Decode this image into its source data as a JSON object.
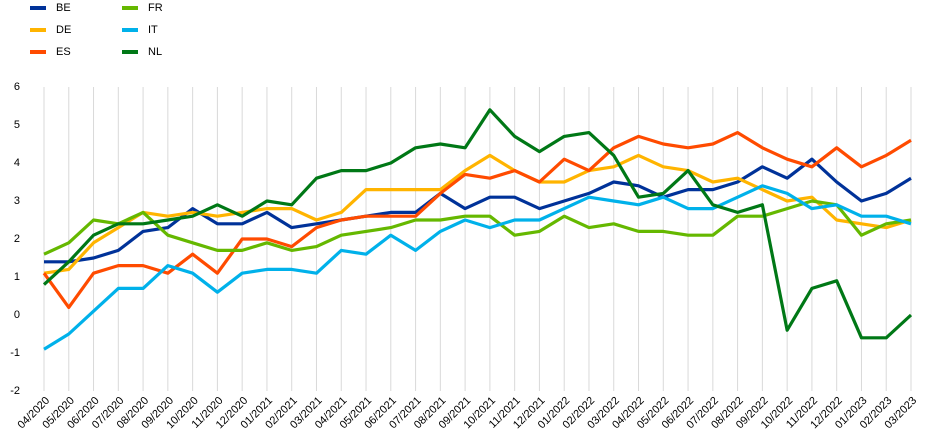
{
  "chart_data": {
    "type": "line",
    "categories": [
      "04/2020",
      "05/2020",
      "06/2020",
      "07/2020",
      "08/2020",
      "09/2020",
      "10/2020",
      "11/2020",
      "12/2020",
      "01/2021",
      "02/2021",
      "03/2021",
      "04/2021",
      "05/2021",
      "06/2021",
      "07/2021",
      "08/2021",
      "09/2021",
      "10/2021",
      "11/2021",
      "12/2021",
      "01/2022",
      "02/2022",
      "03/2022",
      "04/2022",
      "05/2022",
      "06/2022",
      "07/2022",
      "08/2022",
      "09/2022",
      "10/2022",
      "11/2022",
      "12/2022",
      "01/2023",
      "02/2023",
      "03/2023"
    ],
    "series": [
      {
        "name": "BE",
        "color": "#003299",
        "values": [
          1.4,
          1.4,
          1.5,
          1.7,
          2.2,
          2.3,
          2.8,
          2.4,
          2.4,
          2.7,
          2.3,
          2.4,
          2.5,
          2.6,
          2.7,
          2.7,
          3.2,
          2.8,
          3.1,
          3.1,
          2.8,
          3.0,
          3.2,
          3.5,
          3.4,
          3.1,
          3.3,
          3.3,
          3.5,
          3.9,
          3.6,
          4.1,
          3.5,
          3.0,
          3.2,
          3.6
        ]
      },
      {
        "name": "DE",
        "color": "#ffb400",
        "values": [
          1.1,
          1.2,
          1.9,
          2.3,
          2.7,
          2.6,
          2.7,
          2.6,
          2.7,
          2.8,
          2.8,
          2.5,
          2.7,
          3.3,
          3.3,
          3.3,
          3.3,
          3.8,
          4.2,
          3.8,
          3.5,
          3.5,
          3.8,
          3.9,
          4.2,
          3.9,
          3.8,
          3.5,
          3.6,
          3.3,
          3.0,
          3.1,
          2.5,
          2.4,
          2.3,
          2.5
        ]
      },
      {
        "name": "ES",
        "color": "#ff4b00",
        "values": [
          1.1,
          0.2,
          1.1,
          1.3,
          1.3,
          1.1,
          1.6,
          1.1,
          2.0,
          2.0,
          1.8,
          2.3,
          2.5,
          2.6,
          2.6,
          2.6,
          3.2,
          3.7,
          3.6,
          3.8,
          3.5,
          4.1,
          3.8,
          4.4,
          4.7,
          4.5,
          4.4,
          4.5,
          4.8,
          4.4,
          4.1,
          3.9,
          4.4,
          3.9,
          4.2,
          4.6
        ]
      },
      {
        "name": "FR",
        "color": "#65b800",
        "values": [
          1.6,
          1.9,
          2.5,
          2.4,
          2.7,
          2.1,
          1.9,
          1.7,
          1.7,
          1.9,
          1.7,
          1.8,
          2.1,
          2.2,
          2.3,
          2.5,
          2.5,
          2.6,
          2.6,
          2.1,
          2.2,
          2.6,
          2.3,
          2.4,
          2.2,
          2.2,
          2.1,
          2.1,
          2.6,
          2.6,
          2.8,
          3.0,
          2.9,
          2.1,
          2.4,
          2.5
        ]
      },
      {
        "name": "IT",
        "color": "#00b1ea",
        "values": [
          -0.9,
          -0.5,
          0.1,
          0.7,
          0.7,
          1.3,
          1.1,
          0.6,
          1.1,
          1.2,
          1.2,
          1.1,
          1.7,
          1.6,
          2.1,
          1.7,
          2.2,
          2.5,
          2.3,
          2.5,
          2.5,
          2.8,
          3.1,
          3.0,
          2.9,
          3.1,
          2.8,
          2.8,
          3.1,
          3.4,
          3.2,
          2.8,
          2.9,
          2.6,
          2.6,
          2.4
        ]
      },
      {
        "name": "NL",
        "color": "#007816",
        "values": [
          0.8,
          1.4,
          2.1,
          2.4,
          2.4,
          2.5,
          2.6,
          2.9,
          2.6,
          3.0,
          2.9,
          3.6,
          3.8,
          3.8,
          4.0,
          4.4,
          4.5,
          4.4,
          5.4,
          4.7,
          4.3,
          4.7,
          4.8,
          4.2,
          3.1,
          3.2,
          3.8,
          2.9,
          2.7,
          2.9,
          -0.4,
          0.7,
          0.9,
          -0.6,
          -0.6,
          0.0
        ]
      }
    ],
    "ylim": [
      -2,
      6
    ],
    "yticks": [
      -2,
      -1,
      0,
      1,
      2,
      3,
      4,
      5,
      6
    ],
    "grid": "x",
    "legend": "top-left"
  }
}
